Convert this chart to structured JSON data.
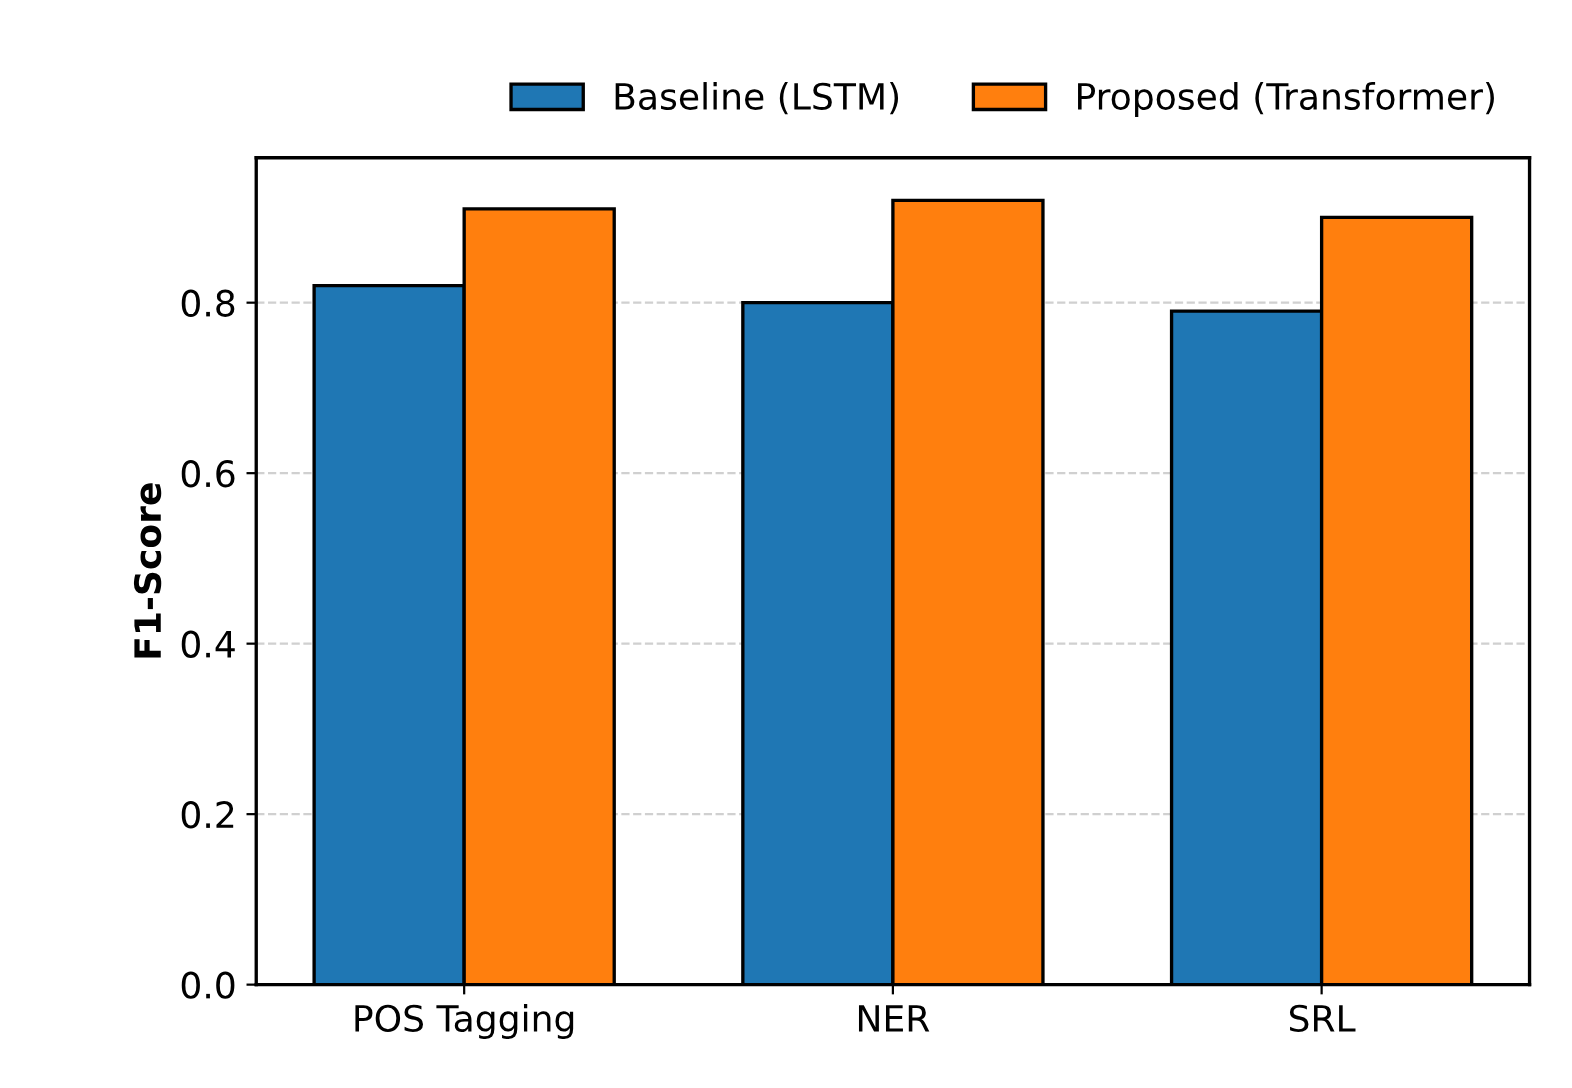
{
  "chart_data": {
    "type": "bar",
    "ylabel": "F1-Score",
    "categories": [
      "POS Tagging",
      "NER",
      "SRL"
    ],
    "series": [
      {
        "name": "Baseline (LSTM)",
        "color": "#1f77b4",
        "values": [
          0.82,
          0.8,
          0.79
        ]
      },
      {
        "name": "Proposed (Transformer)",
        "color": "#ff7f0e",
        "values": [
          0.91,
          0.92,
          0.9
        ]
      }
    ],
    "ylim": [
      0,
      0.97
    ],
    "yticks": [
      {
        "value": 0,
        "label": "0.0"
      },
      0.2,
      0.4,
      0.6,
      0.8
    ],
    "grid": "y",
    "legend": "top right"
  }
}
